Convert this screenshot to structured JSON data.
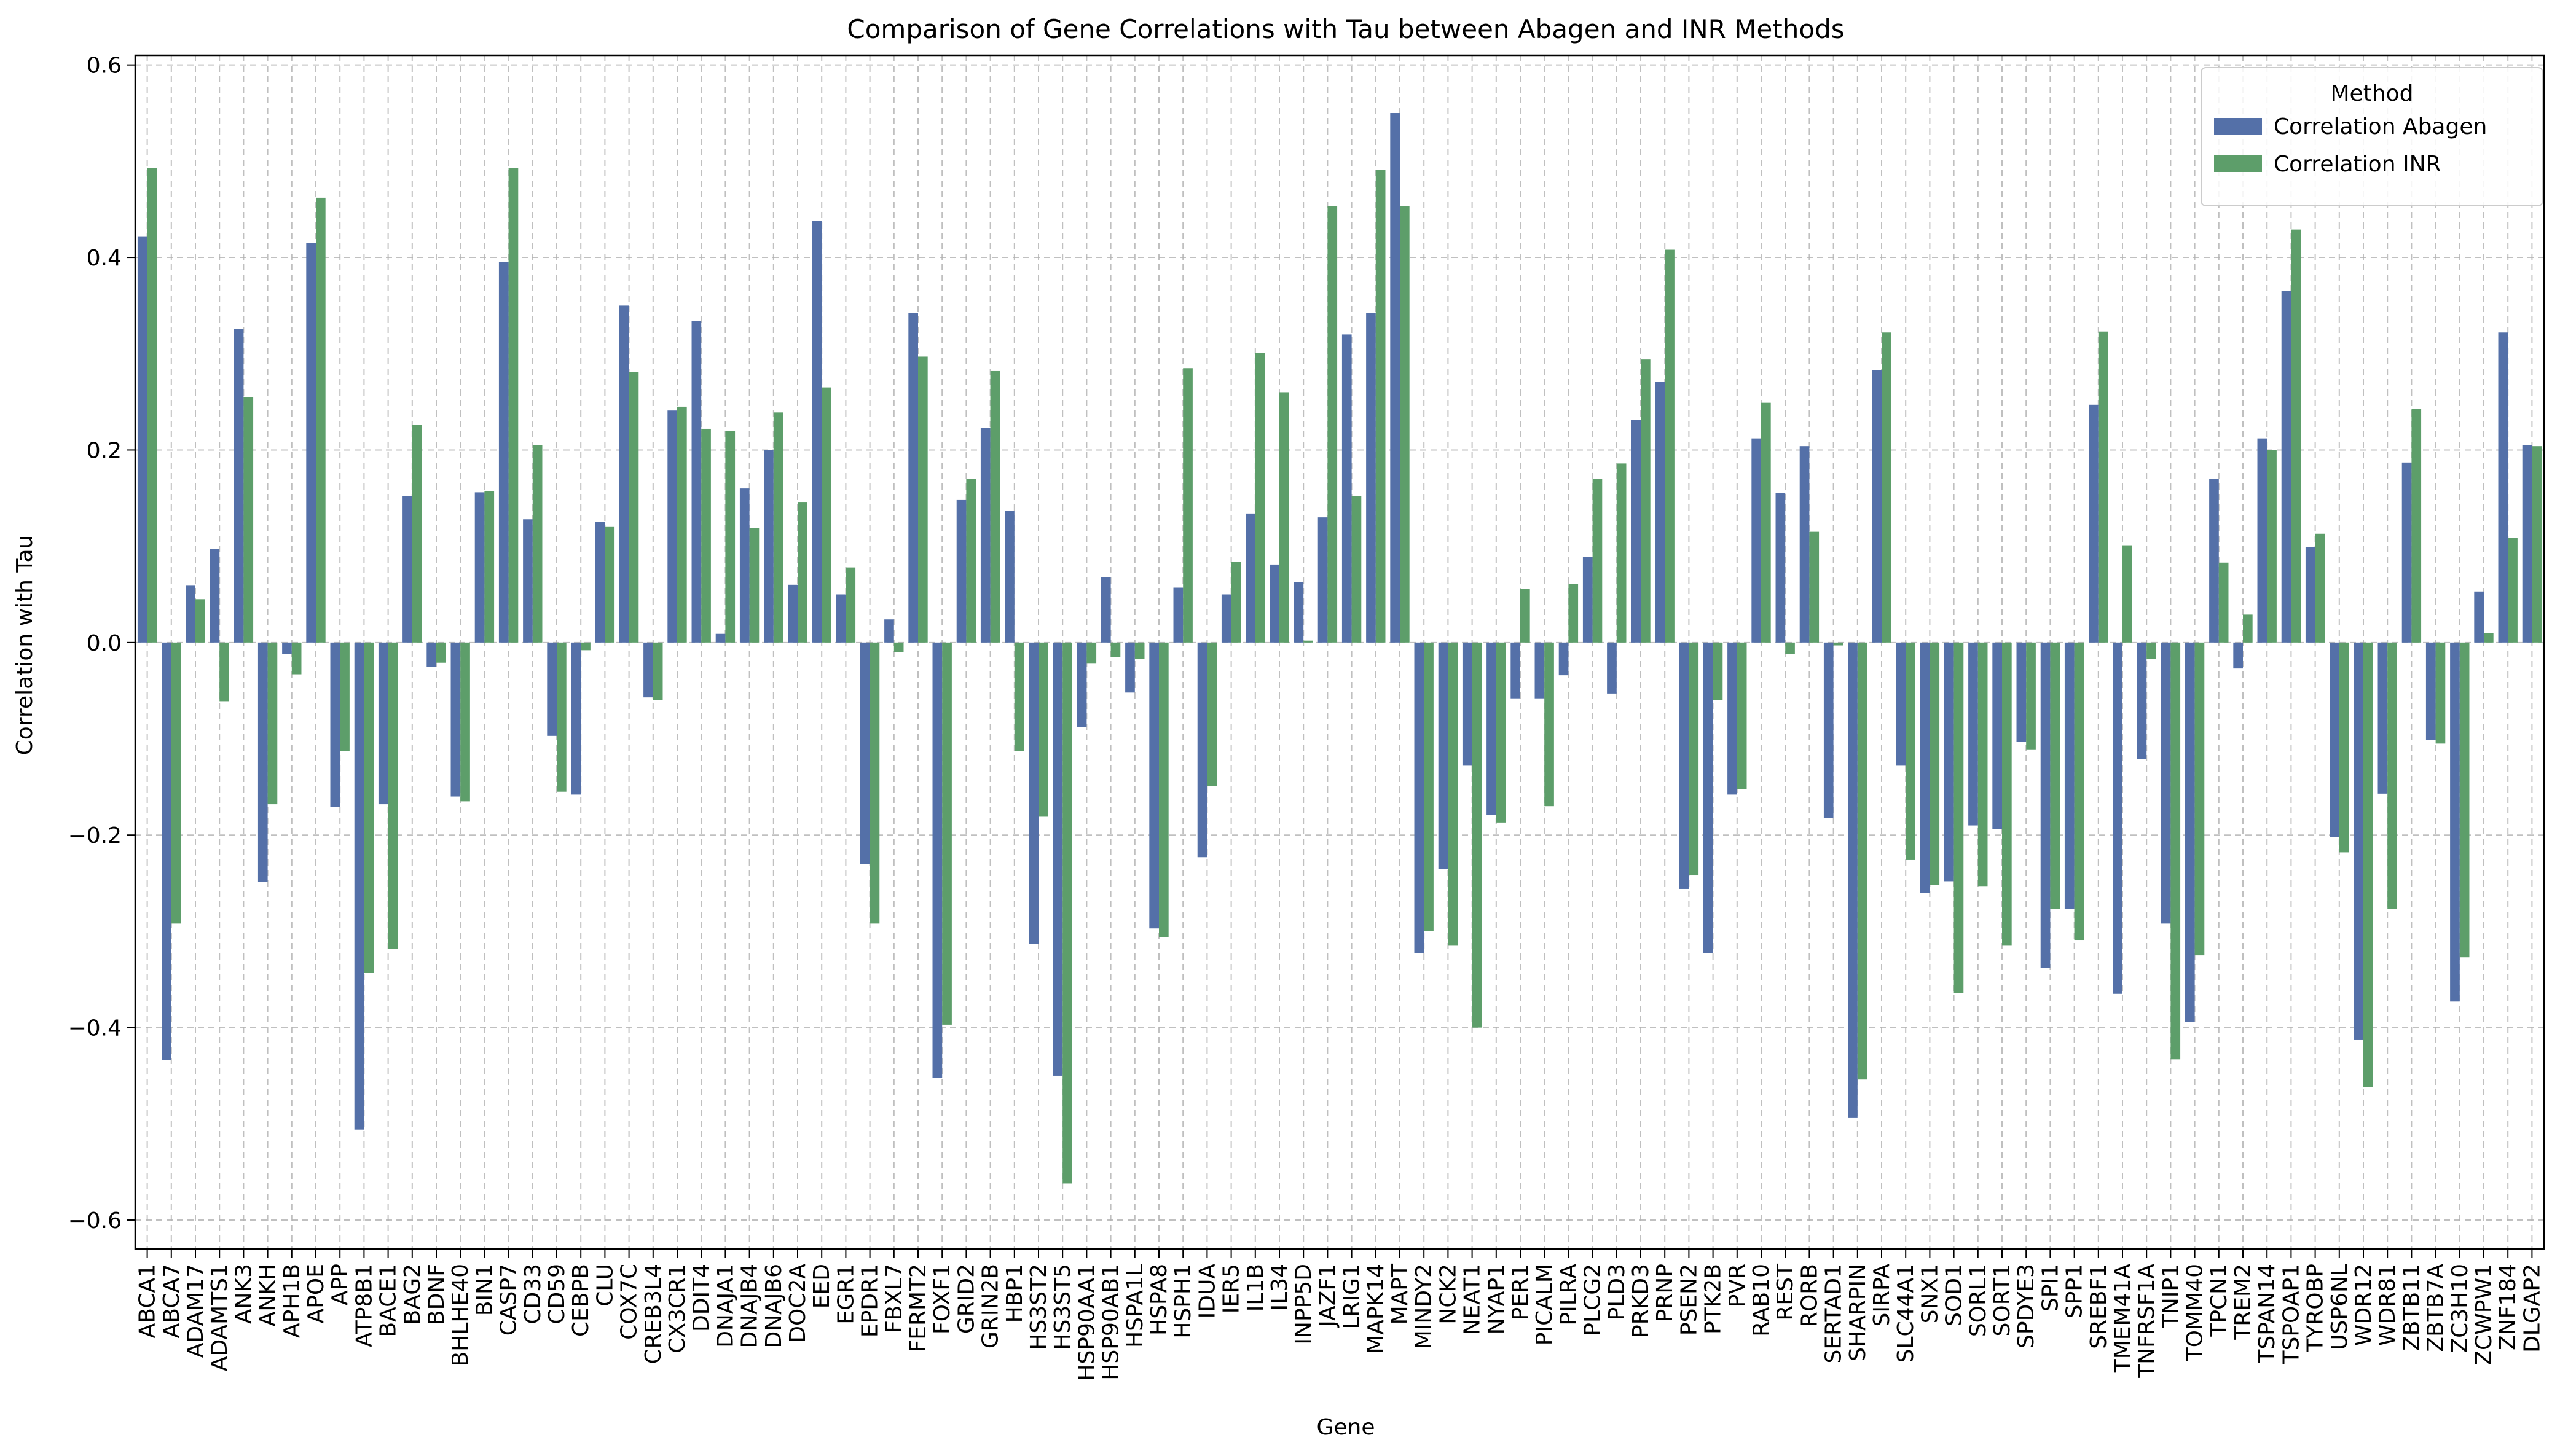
{
  "chart_data": {
    "type": "bar",
    "title": "Comparison of Gene Correlations with Tau between Abagen and INR Methods",
    "xlabel": "Gene",
    "ylabel": "Correlation with Tau",
    "ylim": [
      -0.63,
      0.61
    ],
    "yticks": [
      -0.6,
      -0.4,
      -0.2,
      0.0,
      0.2,
      0.4,
      0.6
    ],
    "ytick_labels": [
      "−0.6",
      "−0.4",
      "−0.2",
      "0.0",
      "0.2",
      "0.4",
      "0.6"
    ],
    "grid": true,
    "legend": {
      "title": "Method",
      "placement": "top-right",
      "entries": [
        "Correlation Abagen",
        "Correlation INR"
      ]
    },
    "colors": {
      "abagen": "#5470a8",
      "inr": "#5d9e6a"
    },
    "categories": [
      "ABCA1",
      "ABCA7",
      "ADAM17",
      "ADAMTS1",
      "ANK3",
      "ANKH",
      "APH1B",
      "APOE",
      "APP",
      "ATP8B1",
      "BACE1",
      "BAG2",
      "BDNF",
      "BHLHE40",
      "BIN1",
      "CASP7",
      "CD33",
      "CD59",
      "CEBPB",
      "CLU",
      "COX7C",
      "CREB3L4",
      "CX3CR1",
      "DDIT4",
      "DNAJA1",
      "DNAJB4",
      "DNAJB6",
      "DOC2A",
      "EED",
      "EGR1",
      "EPDR1",
      "FBXL7",
      "FERMT2",
      "FOXF1",
      "GRID2",
      "GRIN2B",
      "HBP1",
      "HS3ST2",
      "HS3ST5",
      "HSP90AA1",
      "HSP90AB1",
      "HSPA1L",
      "HSPA8",
      "HSPH1",
      "IDUA",
      "IER5",
      "IL1B",
      "IL34",
      "INPP5D",
      "JAZF1",
      "LRIG1",
      "MAPK14",
      "MAPT",
      "MINDY2",
      "NCK2",
      "NEAT1",
      "NYAP1",
      "PER1",
      "PICALM",
      "PILRA",
      "PLCG2",
      "PLD3",
      "PRKD3",
      "PRNP",
      "PSEN2",
      "PTK2B",
      "PVR",
      "RAB10",
      "REST",
      "RORB",
      "SERTAD1",
      "SHARPIN",
      "SIRPA",
      "SLC44A1",
      "SNX1",
      "SOD1",
      "SORL1",
      "SORT1",
      "SPDYE3",
      "SPI1",
      "SPP1",
      "SREBF1",
      "TMEM41A",
      "TNFRSF1A",
      "TNIP1",
      "TOMM40",
      "TPCN1",
      "TREM2",
      "TSPAN14",
      "TSPOAP1",
      "TYROBP",
      "USP6NL",
      "WDR12",
      "WDR81",
      "ZBTB11",
      "ZBTB7A",
      "ZC3H10",
      "ZCWPW1",
      "ZNF184",
      "DLGAP2"
    ],
    "series": [
      {
        "name": "Correlation Abagen",
        "values": [
          0.422,
          -0.434,
          0.059,
          0.097,
          0.326,
          -0.249,
          -0.012,
          0.415,
          -0.171,
          -0.506,
          -0.168,
          0.152,
          -0.025,
          -0.16,
          0.156,
          0.395,
          0.128,
          -0.097,
          -0.158,
          0.125,
          0.35,
          -0.057,
          0.241,
          0.334,
          0.009,
          0.16,
          0.2,
          0.06,
          0.438,
          0.05,
          -0.23,
          0.024,
          0.342,
          -0.452,
          0.148,
          0.223,
          0.137,
          -0.313,
          -0.45,
          -0.088,
          0.068,
          -0.052,
          -0.297,
          0.057,
          -0.223,
          0.05,
          0.134,
          0.081,
          0.063,
          0.13,
          0.32,
          0.342,
          0.55,
          -0.323,
          -0.235,
          -0.128,
          -0.179,
          -0.058,
          -0.058,
          -0.034,
          0.089,
          -0.053,
          0.231,
          0.271,
          -0.256,
          -0.323,
          -0.158,
          0.212,
          0.155,
          0.204,
          -0.182,
          -0.494,
          0.283,
          -0.128,
          -0.26,
          -0.248,
          -0.19,
          -0.194,
          -0.103,
          -0.338,
          -0.277,
          0.247,
          -0.365,
          -0.121,
          -0.292,
          -0.394,
          0.17,
          -0.027,
          0.212,
          0.365,
          0.099,
          -0.202,
          -0.413,
          -0.157,
          0.187,
          -0.101,
          -0.373,
          0.053,
          0.322,
          0.205
        ]
      },
      {
        "name": "Correlation INR",
        "values": [
          0.493,
          -0.292,
          0.045,
          -0.061,
          0.255,
          -0.168,
          -0.033,
          0.462,
          -0.113,
          -0.343,
          -0.318,
          0.226,
          -0.021,
          -0.165,
          0.157,
          0.493,
          0.205,
          -0.155,
          -0.008,
          0.12,
          0.281,
          -0.06,
          0.245,
          0.222,
          0.22,
          0.119,
          0.239,
          0.146,
          0.265,
          0.078,
          -0.292,
          -0.01,
          0.297,
          -0.397,
          0.17,
          0.282,
          -0.113,
          -0.181,
          -0.562,
          -0.022,
          -0.015,
          -0.017,
          -0.306,
          0.285,
          -0.149,
          0.084,
          0.301,
          0.26,
          0.002,
          0.453,
          0.152,
          0.491,
          0.453,
          -0.3,
          -0.315,
          -0.4,
          -0.187,
          0.056,
          -0.17,
          0.061,
          0.17,
          0.186,
          0.294,
          0.408,
          -0.242,
          -0.06,
          -0.152,
          0.249,
          -0.012,
          0.115,
          -0.003,
          -0.454,
          0.322,
          -0.226,
          -0.252,
          -0.364,
          -0.253,
          -0.315,
          -0.111,
          -0.277,
          -0.309,
          0.323,
          0.101,
          -0.017,
          -0.433,
          -0.325,
          0.083,
          0.029,
          0.2,
          0.429,
          0.113,
          -0.218,
          -0.462,
          -0.277,
          0.243,
          -0.105,
          -0.327,
          0.01,
          0.109,
          0.204
        ]
      }
    ]
  }
}
